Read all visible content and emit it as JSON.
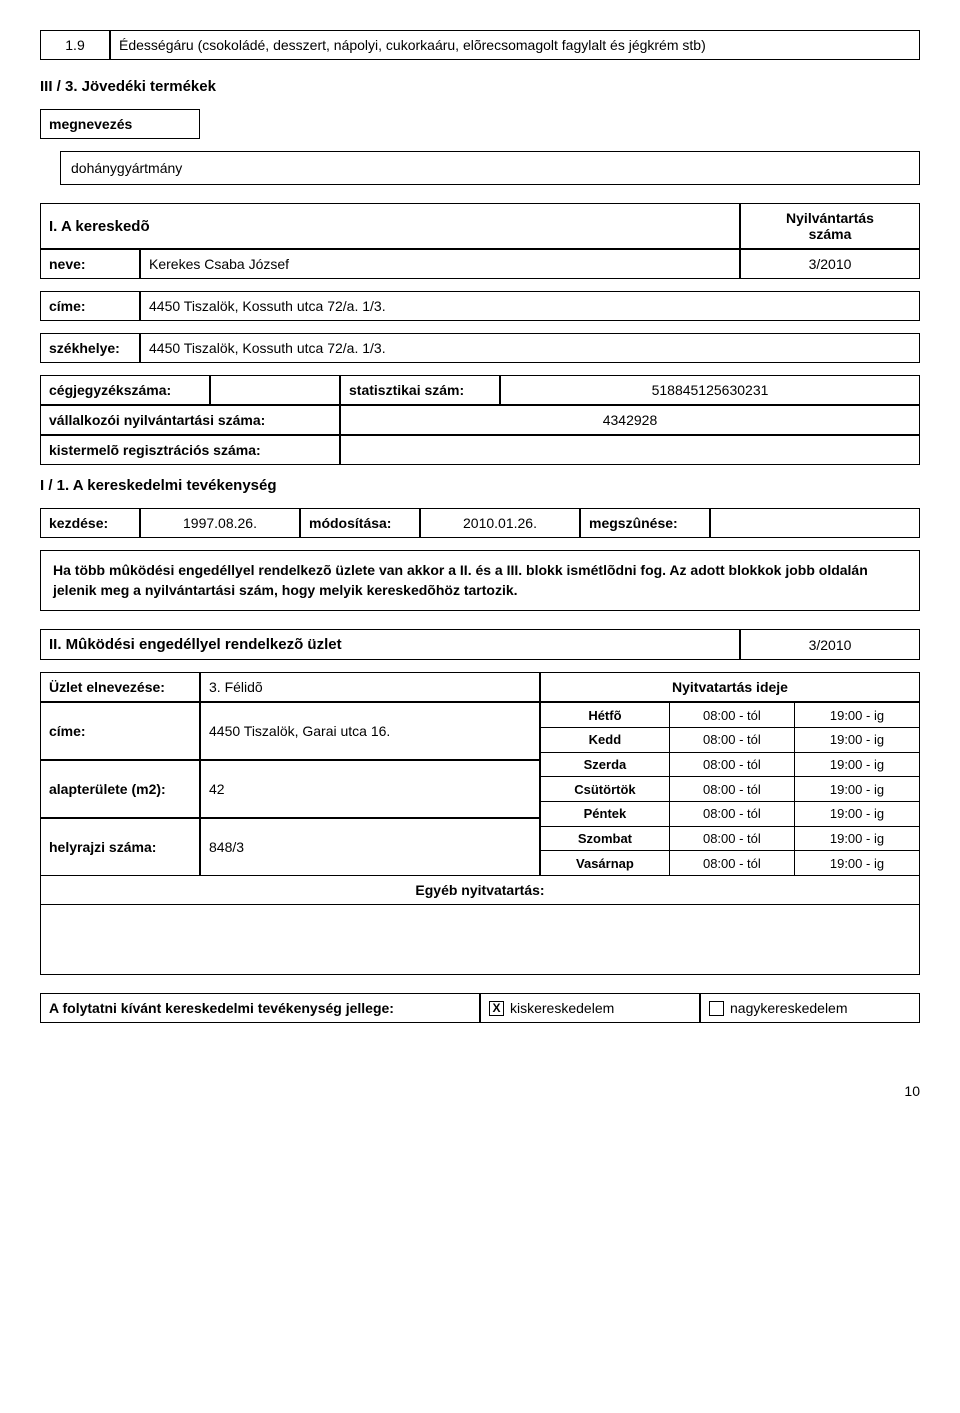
{
  "top_row": {
    "code": "1.9",
    "desc": "Édességáru (csokoládé, desszert, nápolyi, cukorkaáru, elõrecsomagolt fagylalt és jégkrém stb)"
  },
  "section3": {
    "heading": "III / 3. Jövedéki termékek",
    "megnevezes_label": "megnevezés",
    "item": "dohánygyártmány"
  },
  "merchant": {
    "heading": "I. A kereskedõ",
    "nyilv_label_line1": "Nyilvántartás",
    "nyilv_label_line2": "száma",
    "neve_label": "neve:",
    "neve_value": "Kerekes Csaba József",
    "nyilv_value": "3/2010",
    "cime_label": "címe:",
    "cime_value": "4450 Tiszalök, Kossuth utca 72/a. 1/3.",
    "szekhely_label": "székhelye:",
    "szekhely_value": "4450 Tiszalök, Kossuth utca 72/a. 1/3.",
    "cegj_label": "cégjegyzékszáma:",
    "cegj_value": "",
    "stat_label": "statisztikai szám:",
    "stat_value": "518845125630231",
    "vall_label": "vállalkozói nyilvántartási száma:",
    "vall_value": "4342928",
    "kist_label": "kistermelõ regisztrációs száma:",
    "kist_value": ""
  },
  "activity": {
    "heading": "I / 1. A kereskedelmi tevékenység",
    "kezdes_label": "kezdése:",
    "kezdes_value": "1997.08.26.",
    "modositas_label": "módosítása:",
    "modositas_value": "2010.01.26.",
    "megszun_label": "megszûnése:",
    "megszun_value": ""
  },
  "note": "Ha több mûködési engedéllyel rendelkezõ üzlete van akkor a II. és a III. blokk ismétlõdni fog. Az adott blokkok jobb oldalán jelenik meg a nyilvántartási szám, hogy melyik kereskedõhöz tartozik.",
  "section2": {
    "heading": "II. Mûködési engedéllyel rendelkezõ üzlet",
    "number": "3/2010"
  },
  "shop": {
    "uzlet_label": "Üzlet elnevezése:",
    "uzlet_value": "3. Félidõ",
    "nyit_label": "Nyitvatartás ideje",
    "cime_label": "címe:",
    "cime_value": "4450 Tiszalök, Garai utca 16.",
    "alap_label": "alapterülete (m2):",
    "alap_value": "42",
    "helyr_label": "helyrajzi száma:",
    "helyr_value": "848/3",
    "egyeb_label": "Egyéb nyitvatartás:",
    "hours": {
      "days": [
        "Hétfõ",
        "Kedd",
        "Szerda",
        "Csütörtök",
        "Péntek",
        "Szombat",
        "Vasárnap"
      ],
      "from": [
        "08:00 - tól",
        "08:00 - tól",
        "08:00 - tól",
        "08:00 - tól",
        "08:00 - tól",
        "08:00 - tól",
        "08:00 - tól"
      ],
      "to": [
        "19:00 - ig",
        "19:00 - ig",
        "19:00 - ig",
        "19:00 - ig",
        "19:00 - ig",
        "19:00 - ig",
        "19:00 - ig"
      ]
    }
  },
  "continuation": {
    "label": "A folytatni kívánt kereskedelmi tevékenység jellege:",
    "opt1": "kiskereskedelem",
    "opt1_checked": "X",
    "opt2": "nagykereskedelem",
    "opt2_checked": ""
  },
  "page_number": "10",
  "colors": {
    "border": "#000000",
    "text": "#000000",
    "bg": "#ffffff"
  }
}
